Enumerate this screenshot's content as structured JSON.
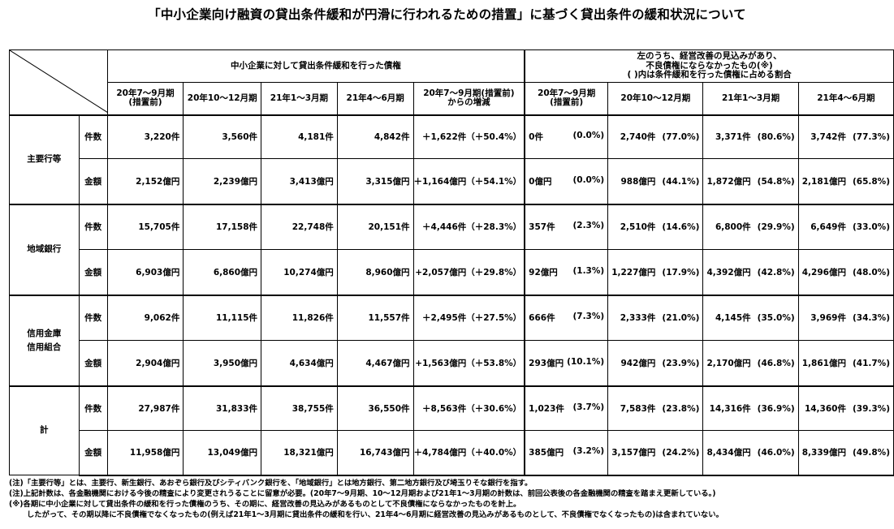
{
  "title": "「中小企業向け融資の貸出条件緩和が円滑に行われるための措置」に基づく貸出条件の緩和状況について",
  "header": {
    "group1": "中小企業に対して貸出条件緩和を行った債権",
    "group2_line1": "左のうち、経営改善の見込みがあり、",
    "group2_line2": "不良債権にならなかったもの(※)",
    "group2_line3": "( )内は条件緩和を行った債権に占める割合",
    "col1_line1": "20年7～9月期",
    "col1_line2": "(措置前)",
    "col2": "20年10～12月期",
    "col3": "21年1～3月期",
    "col4": "21年4～6月期",
    "col5_line1": "20年7～9月期(措置前)",
    "col5_line2": "からの増減",
    "col6_line1": "20年7～9月期",
    "col6_line2": "(措置前)",
    "col7": "20年10～12月期",
    "col8": "21年1～3月期",
    "col9": "21年4～6月期"
  },
  "rows": [
    {
      "bank_line1": "主要行等",
      "bank_line2": "",
      "count": {
        "kind": "件数",
        "v1": "3,220件",
        "v2": "3,560件",
        "v3": "4,181件",
        "v4": "4,842件",
        "inc": "＋1,622件（＋50.4%）",
        "p1": "0件",
        "r1": "(0.0%)",
        "p2": "2,740件",
        "r2": "(77.0%)",
        "p3": "3,371件",
        "r3": "(80.6%)",
        "p4": "3,742件",
        "r4": "(77.3%)"
      },
      "amount": {
        "kind": "金額",
        "v1": "2,152億円",
        "v2": "2,239億円",
        "v3": "3,413億円",
        "v4": "3,315億円",
        "inc": "＋1,164億円（＋54.1%）",
        "p1": "0億円",
        "r1": "(0.0%)",
        "p2": "988億円",
        "r2": "(44.1%)",
        "p3": "1,872億円",
        "r3": "(54.8%)",
        "p4": "2,181億円",
        "r4": "(65.8%)"
      }
    },
    {
      "bank_line1": "地域銀行",
      "bank_line2": "",
      "count": {
        "kind": "件数",
        "v1": "15,705件",
        "v2": "17,158件",
        "v3": "22,748件",
        "v4": "20,151件",
        "inc": "＋4,446件（＋28.3%）",
        "p1": "357件",
        "r1": "(2.3%)",
        "p2": "2,510件",
        "r2": "(14.6%)",
        "p3": "6,800件",
        "r3": "(29.9%)",
        "p4": "6,649件",
        "r4": "(33.0%)"
      },
      "amount": {
        "kind": "金額",
        "v1": "6,903億円",
        "v2": "6,860億円",
        "v3": "10,274億円",
        "v4": "8,960億円",
        "inc": "+2,057億円（＋29.8%）",
        "p1": "92億円",
        "r1": "(1.3%)",
        "p2": "1,227億円",
        "r2": "(17.9%)",
        "p3": "4,392億円",
        "r3": "(42.8%)",
        "p4": "4,296億円",
        "r4": "(48.0%)"
      }
    },
    {
      "bank_line1": "信用金庫",
      "bank_line2": "信用組合",
      "count": {
        "kind": "件数",
        "v1": "9,062件",
        "v2": "11,115件",
        "v3": "11,826件",
        "v4": "11,557件",
        "inc": "＋2,495件（＋27.5%）",
        "p1": "666件",
        "r1": "(7.3%)",
        "p2": "2,333件",
        "r2": "(21.0%)",
        "p3": "4,145件",
        "r3": "(35.0%)",
        "p4": "3,969件",
        "r4": "(34.3%)"
      },
      "amount": {
        "kind": "金額",
        "v1": "2,904億円",
        "v2": "3,950億円",
        "v3": "4,634億円",
        "v4": "4,467億円",
        "inc": "+1,563億円（＋53.8%）",
        "p1": "293億円",
        "r1": "(10.1%)",
        "p2": "942億円",
        "r2": "(23.9%)",
        "p3": "2,170億円",
        "r3": "(46.8%)",
        "p4": "1,861億円",
        "r4": "(41.7%)"
      }
    },
    {
      "bank_line1": "計",
      "bank_line2": "",
      "count": {
        "kind": "件数",
        "v1": "27,987件",
        "v2": "31,833件",
        "v3": "38,755件",
        "v4": "36,550件",
        "inc": "＋8,563件（＋30.6%）",
        "p1": "1,023件",
        "r1": "(3.7%)",
        "p2": "7,583件",
        "r2": "(23.8%)",
        "p3": "14,316件",
        "r3": "(36.9%)",
        "p4": "14,360件",
        "r4": "(39.3%)"
      },
      "amount": {
        "kind": "金額",
        "v1": "11,958億円",
        "v2": "13,049億円",
        "v3": "18,321億円",
        "v4": "16,743億円",
        "inc": "＋4,784億円（＋40.0%）",
        "p1": "385億円",
        "r1": "(3.2%)",
        "p2": "3,157億円",
        "r2": "(24.2%)",
        "p3": "8,434億円",
        "r3": "(46.0%)",
        "p4": "8,339億円",
        "r4": "(49.8%)"
      }
    }
  ],
  "notes": [
    "(注)「主要行等」とは、主要行、新生銀行、あおぞら銀行及びシティバンク銀行を、「地域銀行」とは地方銀行、第二地方銀行及び埼玉りそな銀行を指す。",
    "(注)上記計数は、各金融機関における今後の精査により変更されうることに留意が必要。(20年7～9月期、10～12月期および21年1～3月期の計数は、前回公表後の各金融機関の精査を踏まえ更新している。)",
    "(※)各期に中小企業に対して貸出条件の緩和を行った債権のうち、その期に、経営改善の見込みがあるものとして不良債権にならなかったものを計上。",
    "したがって、その期以降に不良債権でなくなったもの(例えば21年1～3月期に貸出条件の緩和を行い、21年4～6月期に経営改善の見込みがあるものとして、不良債権でなくなったもの)は含まれていない。"
  ]
}
